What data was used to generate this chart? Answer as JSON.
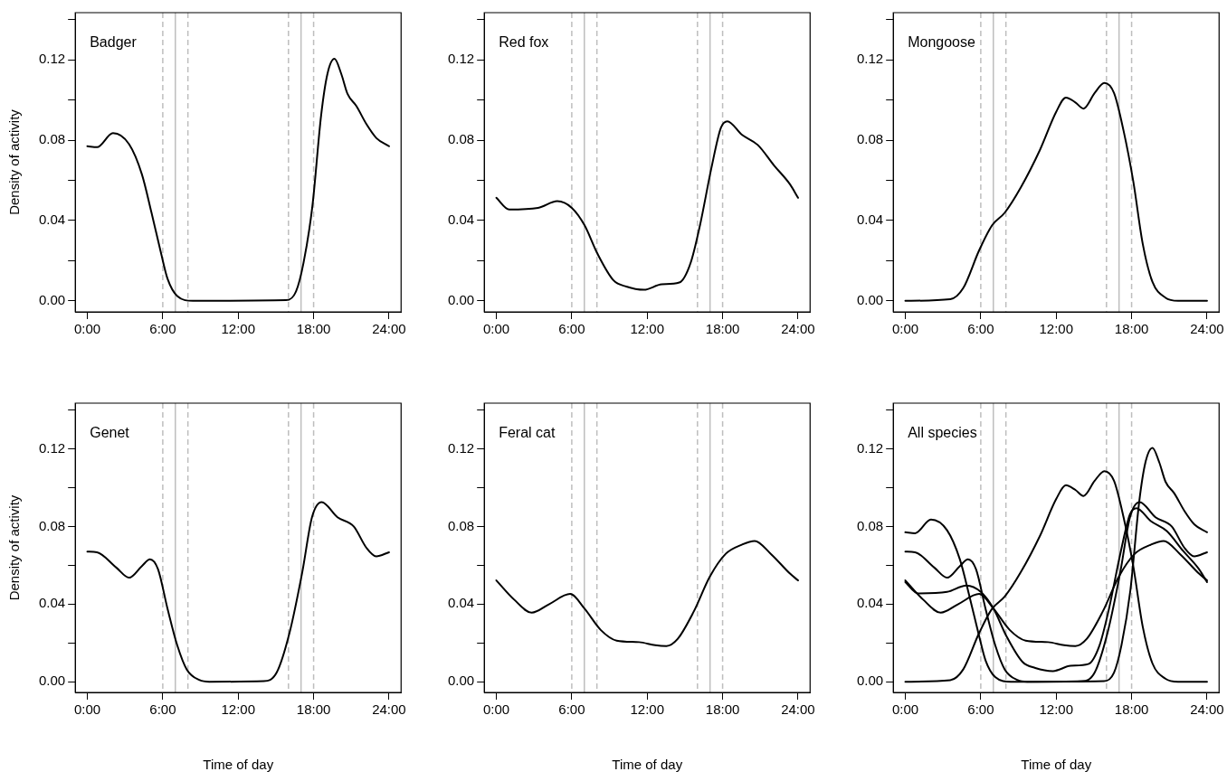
{
  "chart_data": [
    {
      "type": "line",
      "title": "Badger",
      "ylabel": "Density of activity",
      "xlim": [
        -0.96,
        24.96
      ],
      "ylim": [
        -0.0055,
        0.1435
      ],
      "xticks": [
        {
          "value": 0,
          "label": "0:00"
        },
        {
          "value": 6,
          "label": "6:00"
        },
        {
          "value": 12,
          "label": "12:00"
        },
        {
          "value": 18,
          "label": "18:00"
        },
        {
          "value": 24,
          "label": "24:00"
        }
      ],
      "yticks": [
        {
          "value": 0,
          "label": "0.00"
        },
        {
          "value": 0.02,
          "label": null
        },
        {
          "value": 0.04,
          "label": "0.04"
        },
        {
          "value": 0.06,
          "label": null
        },
        {
          "value": 0.08,
          "label": "0.08"
        },
        {
          "value": 0.1,
          "label": null
        },
        {
          "value": 0.12,
          "label": "0.12"
        },
        {
          "value": 0.14,
          "label": null
        }
      ],
      "ref_lines": [
        {
          "axis": "x",
          "value": 6,
          "color": "#bebebe",
          "line_style": "dashed"
        },
        {
          "axis": "x",
          "value": 7,
          "color": "#bebebe",
          "line_style": "solid"
        },
        {
          "axis": "x",
          "value": 8,
          "color": "#bebebe",
          "line_style": "dashed"
        },
        {
          "axis": "x",
          "value": 16,
          "color": "#bebebe",
          "line_style": "dashed"
        },
        {
          "axis": "x",
          "value": 17,
          "color": "#bebebe",
          "line_style": "solid"
        },
        {
          "axis": "x",
          "value": 18,
          "color": "#bebebe",
          "line_style": "dashed"
        }
      ],
      "grid": false,
      "legend": false,
      "marker": "none",
      "line_style": "solid",
      "series": [
        {
          "color": "#000000",
          "x": [
            0,
            0.77,
            2.04,
            3.32,
            4.34,
            5.1,
            5.87,
            6.38,
            7.15,
            8.4,
            15.8,
            16.6,
            17.2,
            17.9,
            18.6,
            19.1,
            19.66,
            20.2,
            20.7,
            21.4,
            22.2,
            23.0,
            24
          ],
          "values": [
            0.077,
            0.0765,
            0.0835,
            0.078,
            0.063,
            0.044,
            0.0235,
            0.011,
            0.0024,
            0,
            0.0003,
            0.0047,
            0.019,
            0.047,
            0.0925,
            0.113,
            0.1205,
            0.113,
            0.103,
            0.097,
            0.088,
            0.081,
            0.077
          ]
        }
      ]
    },
    {
      "type": "line",
      "title": "Red fox",
      "xlim": [
        -0.96,
        24.96
      ],
      "ylim": [
        -0.0055,
        0.1435
      ],
      "xticks": [
        {
          "value": 0,
          "label": "0:00"
        },
        {
          "value": 6,
          "label": "6:00"
        },
        {
          "value": 12,
          "label": "12:00"
        },
        {
          "value": 18,
          "label": "18:00"
        },
        {
          "value": 24,
          "label": "24:00"
        }
      ],
      "yticks": [
        {
          "value": 0,
          "label": "0.00"
        },
        {
          "value": 0.02,
          "label": null
        },
        {
          "value": 0.04,
          "label": "0.04"
        },
        {
          "value": 0.06,
          "label": null
        },
        {
          "value": 0.08,
          "label": "0.08"
        },
        {
          "value": 0.1,
          "label": null
        },
        {
          "value": 0.12,
          "label": "0.12"
        },
        {
          "value": 0.14,
          "label": null
        }
      ],
      "ref_lines": [
        {
          "axis": "x",
          "value": 6,
          "color": "#bebebe",
          "line_style": "dashed"
        },
        {
          "axis": "x",
          "value": 7,
          "color": "#bebebe",
          "line_style": "solid"
        },
        {
          "axis": "x",
          "value": 8,
          "color": "#bebebe",
          "line_style": "dashed"
        },
        {
          "axis": "x",
          "value": 16,
          "color": "#bebebe",
          "line_style": "dashed"
        },
        {
          "axis": "x",
          "value": 17,
          "color": "#bebebe",
          "line_style": "solid"
        },
        {
          "axis": "x",
          "value": 18,
          "color": "#bebebe",
          "line_style": "dashed"
        }
      ],
      "grid": false,
      "legend": false,
      "marker": "none",
      "line_style": "solid",
      "series": [
        {
          "color": "#000000",
          "x": [
            0,
            1.02,
            3.32,
            4.85,
            6.0,
            7.02,
            8.04,
            9.32,
            10.34,
            11.74,
            13.15,
            14.55,
            15.45,
            16.2,
            17.1,
            17.87,
            18.38,
            19.53,
            20.8,
            22.08,
            23.36,
            24
          ],
          "values": [
            0.0513,
            0.0455,
            0.0463,
            0.0496,
            0.0463,
            0.0376,
            0.0235,
            0.0102,
            0.0071,
            0.0055,
            0.0082,
            0.0091,
            0.0188,
            0.0376,
            0.0659,
            0.0863,
            0.0894,
            0.0827,
            0.0776,
            0.0675,
            0.058,
            0.0513
          ]
        }
      ]
    },
    {
      "type": "line",
      "title": "Mongoose",
      "xlim": [
        -0.96,
        24.96
      ],
      "ylim": [
        -0.0055,
        0.1435
      ],
      "xticks": [
        {
          "value": 0,
          "label": "0:00"
        },
        {
          "value": 6,
          "label": "6:00"
        },
        {
          "value": 12,
          "label": "12:00"
        },
        {
          "value": 18,
          "label": "18:00"
        },
        {
          "value": 24,
          "label": "24:00"
        }
      ],
      "yticks": [
        {
          "value": 0,
          "label": "0.00"
        },
        {
          "value": 0.02,
          "label": null
        },
        {
          "value": 0.04,
          "label": "0.04"
        },
        {
          "value": 0.06,
          "label": null
        },
        {
          "value": 0.08,
          "label": "0.08"
        },
        {
          "value": 0.1,
          "label": null
        },
        {
          "value": 0.12,
          "label": "0.12"
        },
        {
          "value": 0.14,
          "label": null
        }
      ],
      "ref_lines": [
        {
          "axis": "x",
          "value": 6,
          "color": "#bebebe",
          "line_style": "dashed"
        },
        {
          "axis": "x",
          "value": 7,
          "color": "#bebebe",
          "line_style": "solid"
        },
        {
          "axis": "x",
          "value": 8,
          "color": "#bebebe",
          "line_style": "dashed"
        },
        {
          "axis": "x",
          "value": 16,
          "color": "#bebebe",
          "line_style": "dashed"
        },
        {
          "axis": "x",
          "value": 17,
          "color": "#bebebe",
          "line_style": "solid"
        },
        {
          "axis": "x",
          "value": 18,
          "color": "#bebebe",
          "line_style": "dashed"
        }
      ],
      "grid": false,
      "legend": false,
      "marker": "none",
      "line_style": "solid",
      "series": [
        {
          "color": "#000000",
          "x": [
            0,
            3.57,
            4.6,
            5.87,
            6.9,
            7.91,
            9.19,
            10.72,
            12.0,
            12.77,
            13.53,
            14.17,
            15.06,
            15.83,
            16.6,
            17.36,
            18.13,
            18.89,
            19.66,
            20.68,
            21.7,
            24
          ],
          "values": [
            0,
            0.0008,
            0.0063,
            0.0251,
            0.0376,
            0.0439,
            0.0565,
            0.0753,
            0.0941,
            0.1012,
            0.0988,
            0.0957,
            0.1035,
            0.1085,
            0.1035,
            0.0847,
            0.0596,
            0.0282,
            0.0094,
            0.0016,
            0,
            0
          ]
        }
      ]
    },
    {
      "type": "line",
      "title": "Genet",
      "ylabel": "Density of activity",
      "xlabel": "Time of day",
      "xlim": [
        -0.96,
        24.96
      ],
      "ylim": [
        -0.0055,
        0.1435
      ],
      "xticks": [
        {
          "value": 0,
          "label": "0:00"
        },
        {
          "value": 6,
          "label": "6:00"
        },
        {
          "value": 12,
          "label": "12:00"
        },
        {
          "value": 18,
          "label": "18:00"
        },
        {
          "value": 24,
          "label": "24:00"
        }
      ],
      "yticks": [
        {
          "value": 0,
          "label": "0.00"
        },
        {
          "value": 0.02,
          "label": null
        },
        {
          "value": 0.04,
          "label": "0.04"
        },
        {
          "value": 0.06,
          "label": null
        },
        {
          "value": 0.08,
          "label": "0.08"
        },
        {
          "value": 0.1,
          "label": null
        },
        {
          "value": 0.12,
          "label": "0.12"
        },
        {
          "value": 0.14,
          "label": null
        }
      ],
      "ref_lines": [
        {
          "axis": "x",
          "value": 6,
          "color": "#bebebe",
          "line_style": "dashed"
        },
        {
          "axis": "x",
          "value": 7,
          "color": "#bebebe",
          "line_style": "solid"
        },
        {
          "axis": "x",
          "value": 8,
          "color": "#bebebe",
          "line_style": "dashed"
        },
        {
          "axis": "x",
          "value": 16,
          "color": "#bebebe",
          "line_style": "dashed"
        },
        {
          "axis": "x",
          "value": 17,
          "color": "#bebebe",
          "line_style": "solid"
        },
        {
          "axis": "x",
          "value": 18,
          "color": "#bebebe",
          "line_style": "dashed"
        }
      ],
      "grid": false,
      "legend": false,
      "marker": "none",
      "line_style": "solid",
      "series": [
        {
          "color": "#000000",
          "x": [
            0,
            0.77,
            2.3,
            3.32,
            4.34,
            4.98,
            5.62,
            6.38,
            7.15,
            7.91,
            8.94,
            9.7,
            14.04,
            15.06,
            16.08,
            17.1,
            17.87,
            18.64,
            19.9,
            21.19,
            22.2,
            22.98,
            24
          ],
          "values": [
            0.067,
            0.0667,
            0.0588,
            0.0536,
            0.0596,
            0.0631,
            0.058,
            0.0376,
            0.0188,
            0.0063,
            0.0008,
            0,
            0.0003,
            0.0047,
            0.0251,
            0.0565,
            0.0847,
            0.0925,
            0.0847,
            0.08,
            0.069,
            0.0646,
            0.0667
          ]
        }
      ]
    },
    {
      "type": "line",
      "title": "Feral cat",
      "xlabel": "Time of day",
      "xlim": [
        -0.96,
        24.96
      ],
      "ylim": [
        -0.0055,
        0.1435
      ],
      "xticks": [
        {
          "value": 0,
          "label": "0:00"
        },
        {
          "value": 6,
          "label": "6:00"
        },
        {
          "value": 12,
          "label": "12:00"
        },
        {
          "value": 18,
          "label": "18:00"
        },
        {
          "value": 24,
          "label": "24:00"
        }
      ],
      "yticks": [
        {
          "value": 0,
          "label": "0.00"
        },
        {
          "value": 0.02,
          "label": null
        },
        {
          "value": 0.04,
          "label": "0.04"
        },
        {
          "value": 0.06,
          "label": null
        },
        {
          "value": 0.08,
          "label": "0.08"
        },
        {
          "value": 0.1,
          "label": null
        },
        {
          "value": 0.12,
          "label": "0.12"
        },
        {
          "value": 0.14,
          "label": null
        }
      ],
      "ref_lines": [
        {
          "axis": "x",
          "value": 6,
          "color": "#bebebe",
          "line_style": "dashed"
        },
        {
          "axis": "x",
          "value": 7,
          "color": "#bebebe",
          "line_style": "solid"
        },
        {
          "axis": "x",
          "value": 8,
          "color": "#bebebe",
          "line_style": "dashed"
        },
        {
          "axis": "x",
          "value": 16,
          "color": "#bebebe",
          "line_style": "dashed"
        },
        {
          "axis": "x",
          "value": 17,
          "color": "#bebebe",
          "line_style": "solid"
        },
        {
          "axis": "x",
          "value": 18,
          "color": "#bebebe",
          "line_style": "dashed"
        }
      ],
      "grid": false,
      "legend": false,
      "marker": "none",
      "line_style": "solid",
      "series": [
        {
          "color": "#000000",
          "x": [
            0,
            1.4,
            2.81,
            4.21,
            5.87,
            7.02,
            8.3,
            9.57,
            11.36,
            12.64,
            13.53,
            14.42,
            15.7,
            16.98,
            18.25,
            19.53,
            20.55,
            21.83,
            23.36,
            24
          ],
          "values": [
            0.0522,
            0.0424,
            0.0356,
            0.04,
            0.0452,
            0.0376,
            0.0267,
            0.0212,
            0.0204,
            0.0188,
            0.0184,
            0.022,
            0.0361,
            0.0541,
            0.0659,
            0.0706,
            0.0725,
            0.0659,
            0.0557,
            0.0522
          ]
        }
      ]
    },
    {
      "type": "line",
      "title": "All species",
      "xlabel": "Time of day",
      "xlim": [
        -0.96,
        24.96
      ],
      "ylim": [
        -0.0055,
        0.1435
      ],
      "xticks": [
        {
          "value": 0,
          "label": "0:00"
        },
        {
          "value": 6,
          "label": "6:00"
        },
        {
          "value": 12,
          "label": "12:00"
        },
        {
          "value": 18,
          "label": "18:00"
        },
        {
          "value": 24,
          "label": "24:00"
        }
      ],
      "yticks": [
        {
          "value": 0,
          "label": "0.00"
        },
        {
          "value": 0.02,
          "label": null
        },
        {
          "value": 0.04,
          "label": "0.04"
        },
        {
          "value": 0.06,
          "label": null
        },
        {
          "value": 0.08,
          "label": "0.08"
        },
        {
          "value": 0.1,
          "label": null
        },
        {
          "value": 0.12,
          "label": "0.12"
        },
        {
          "value": 0.14,
          "label": null
        }
      ],
      "ref_lines": [
        {
          "axis": "x",
          "value": 6,
          "color": "#bebebe",
          "line_style": "dashed"
        },
        {
          "axis": "x",
          "value": 7,
          "color": "#bebebe",
          "line_style": "solid"
        },
        {
          "axis": "x",
          "value": 8,
          "color": "#bebebe",
          "line_style": "dashed"
        },
        {
          "axis": "x",
          "value": 16,
          "color": "#bebebe",
          "line_style": "dashed"
        },
        {
          "axis": "x",
          "value": 17,
          "color": "#bebebe",
          "line_style": "solid"
        },
        {
          "axis": "x",
          "value": 18,
          "color": "#bebebe",
          "line_style": "dashed"
        }
      ],
      "grid": false,
      "legend": false,
      "marker": "none",
      "line_style": "solid",
      "series": [
        {
          "color": "#000000",
          "x": [
            0,
            0.77,
            2.04,
            3.32,
            4.34,
            5.1,
            5.87,
            6.38,
            7.15,
            8.4,
            15.8,
            16.6,
            17.2,
            17.9,
            18.6,
            19.1,
            19.66,
            20.2,
            20.7,
            21.4,
            22.2,
            23.0,
            24
          ],
          "values": [
            0.077,
            0.0765,
            0.0835,
            0.078,
            0.063,
            0.044,
            0.0235,
            0.011,
            0.0024,
            0,
            0.0003,
            0.0047,
            0.019,
            0.047,
            0.0925,
            0.113,
            0.1205,
            0.113,
            0.103,
            0.097,
            0.088,
            0.081,
            0.077
          ]
        },
        {
          "color": "#000000",
          "x": [
            0,
            1.02,
            3.32,
            4.85,
            6.0,
            7.02,
            8.04,
            9.32,
            10.34,
            11.74,
            13.15,
            14.55,
            15.45,
            16.2,
            17.1,
            17.87,
            18.38,
            19.53,
            20.8,
            22.08,
            23.36,
            24
          ],
          "values": [
            0.0513,
            0.0455,
            0.0463,
            0.0496,
            0.0463,
            0.0376,
            0.0235,
            0.0102,
            0.0071,
            0.0055,
            0.0082,
            0.0091,
            0.0188,
            0.0376,
            0.0659,
            0.0863,
            0.0894,
            0.0827,
            0.0776,
            0.0675,
            0.058,
            0.0513
          ]
        },
        {
          "color": "#000000",
          "x": [
            0,
            3.57,
            4.6,
            5.87,
            6.9,
            7.91,
            9.19,
            10.72,
            12.0,
            12.77,
            13.53,
            14.17,
            15.06,
            15.83,
            16.6,
            17.36,
            18.13,
            18.89,
            19.66,
            20.68,
            21.7,
            24
          ],
          "values": [
            0,
            0.0008,
            0.0063,
            0.0251,
            0.0376,
            0.0439,
            0.0565,
            0.0753,
            0.0941,
            0.1012,
            0.0988,
            0.0957,
            0.1035,
            0.1085,
            0.1035,
            0.0847,
            0.0596,
            0.0282,
            0.0094,
            0.0016,
            0,
            0
          ]
        },
        {
          "color": "#000000",
          "x": [
            0,
            0.77,
            2.3,
            3.32,
            4.34,
            4.98,
            5.62,
            6.38,
            7.15,
            7.91,
            8.94,
            9.7,
            14.04,
            15.06,
            16.08,
            17.1,
            17.87,
            18.64,
            19.9,
            21.19,
            22.2,
            22.98,
            24
          ],
          "values": [
            0.067,
            0.0667,
            0.0588,
            0.0536,
            0.0596,
            0.0631,
            0.058,
            0.0376,
            0.0188,
            0.0063,
            0.0008,
            0,
            0.0003,
            0.0047,
            0.0251,
            0.0565,
            0.0847,
            0.0925,
            0.0847,
            0.08,
            0.069,
            0.0646,
            0.0667
          ]
        },
        {
          "color": "#000000",
          "x": [
            0,
            1.4,
            2.81,
            4.21,
            5.87,
            7.02,
            8.3,
            9.57,
            11.36,
            12.64,
            13.53,
            14.42,
            15.7,
            16.98,
            18.25,
            19.53,
            20.55,
            21.83,
            23.36,
            24
          ],
          "values": [
            0.0522,
            0.0424,
            0.0356,
            0.04,
            0.0452,
            0.0376,
            0.0267,
            0.0212,
            0.0204,
            0.0188,
            0.0184,
            0.022,
            0.0361,
            0.0541,
            0.0659,
            0.0706,
            0.0725,
            0.0659,
            0.0557,
            0.0522
          ]
        }
      ]
    }
  ]
}
